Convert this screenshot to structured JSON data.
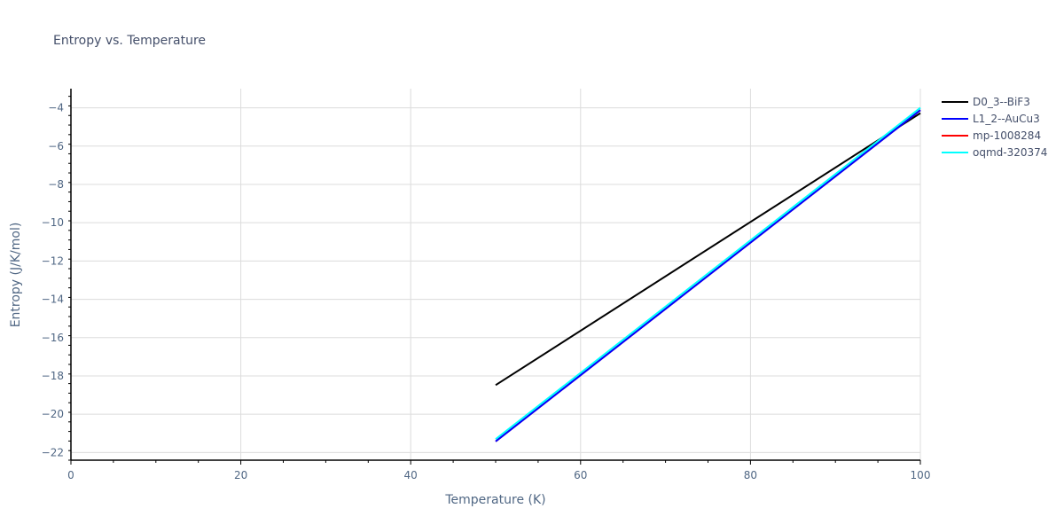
{
  "chart_data": {
    "type": "line",
    "title": "Entropy vs. Temperature",
    "xlabel": "Temperature (K)",
    "ylabel": "Entropy (J/K/mol)",
    "xlim": [
      0,
      100
    ],
    "ylim": [
      -22.4,
      -3.0
    ],
    "xticks": [
      0,
      20,
      40,
      60,
      80,
      100
    ],
    "yticks": [
      -22,
      -20,
      -18,
      -16,
      -14,
      -12,
      -10,
      -8,
      -6,
      -4
    ],
    "grid": true,
    "legend_position": "right",
    "series": [
      {
        "name": "D0_3--BiF3",
        "color": "#000000",
        "x": [
          50,
          100
        ],
        "y": [
          -18.48,
          -4.28
        ]
      },
      {
        "name": "L1_2--AuCu3",
        "color": "#0000ff",
        "x": [
          50,
          100
        ],
        "y": [
          -21.42,
          -4.12
        ]
      },
      {
        "name": "mp-1008284",
        "color": "#ff0000",
        "x": [
          50,
          100
        ],
        "y": [
          -21.42,
          -4.12
        ]
      },
      {
        "name": "oqmd-320374",
        "color": "#00ffff",
        "x": [
          50,
          100
        ],
        "y": [
          -21.3,
          -4.0
        ]
      }
    ]
  }
}
